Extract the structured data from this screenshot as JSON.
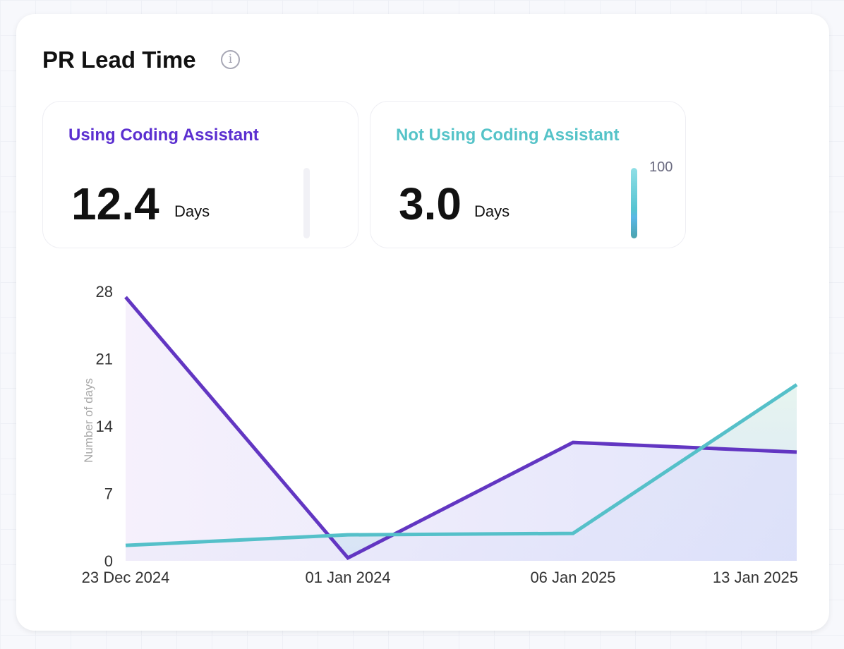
{
  "header": {
    "title": "PR Lead Time",
    "info_icon": "info-icon"
  },
  "stats": [
    {
      "label": "Using Coding Assistant",
      "value": "12.4",
      "unit": "Days",
      "color": "#5b2fd0",
      "bar_fraction": 0,
      "bar_label": ""
    },
    {
      "label": "Not Using Coding Assistant",
      "value": "3.0",
      "unit": "Days",
      "color": "#55c3c8",
      "bar_fraction": 1,
      "bar_label": "100"
    }
  ],
  "chart_data": {
    "type": "area",
    "ylabel": "Number of days",
    "ylim": [
      0,
      28
    ],
    "yticks": [
      "0",
      "7",
      "14",
      "21",
      "28"
    ],
    "categories": [
      "23 Dec 2024",
      "01 Jan 2024",
      "06 Jan 2025",
      "13 Jan 2025"
    ],
    "series": [
      {
        "name": "Using Coding Assistant",
        "color": "#6236c2",
        "values": [
          27.4,
          0.3,
          12.3,
          11.3
        ]
      },
      {
        "name": "Not Using Coding Assistant",
        "color": "#55c0c9",
        "values": [
          1.6,
          2.7,
          2.85,
          18.3
        ]
      }
    ],
    "grid": false
  }
}
